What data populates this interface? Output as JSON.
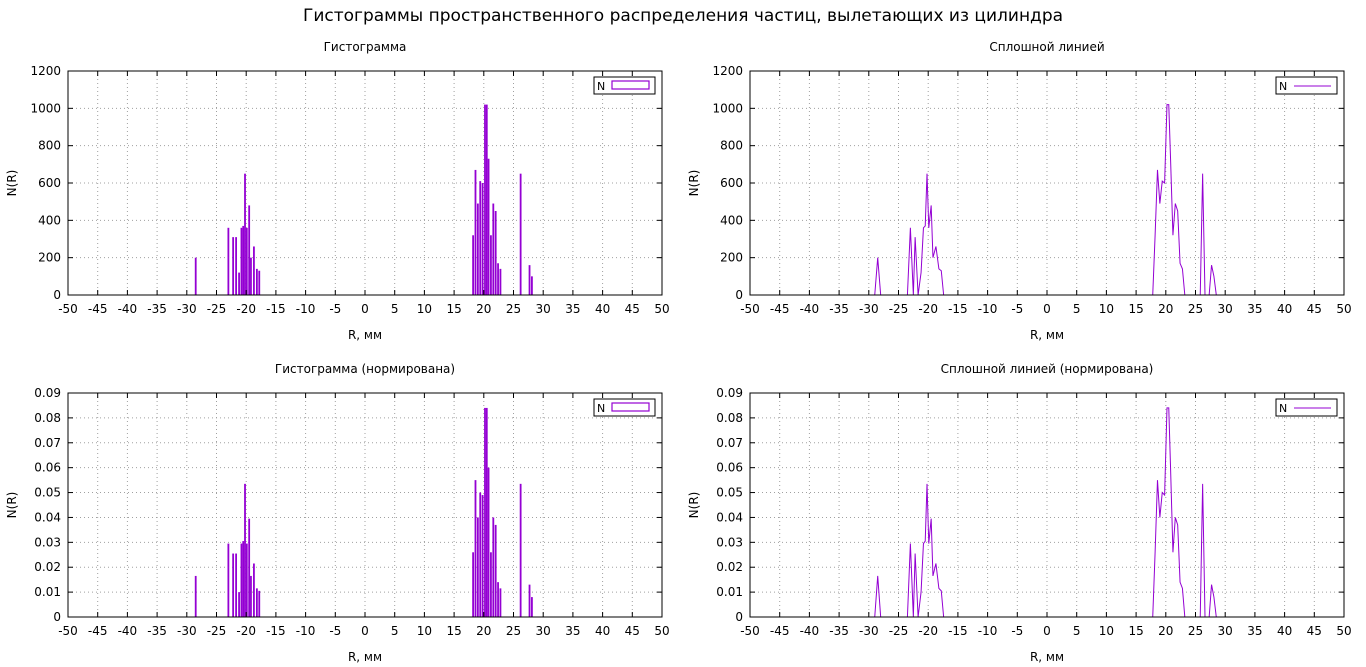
{
  "page_title": "Гистограммы пространственного распределения частиц, вылетающих из цилиндра",
  "colors": {
    "series": "#9400d3",
    "grid": "#a0a0a0",
    "axis": "#000000",
    "background": "#ffffff"
  },
  "chart_data": [
    {
      "type": "bar",
      "title": "Гистограмма",
      "xlabel": "R, мм",
      "ylabel": "N(R)",
      "xlim": [
        -50,
        50
      ],
      "ylim": [
        0,
        1200
      ],
      "xticks": [
        -50,
        -45,
        -40,
        -35,
        -30,
        -25,
        -20,
        -15,
        -10,
        -5,
        0,
        5,
        10,
        15,
        20,
        25,
        30,
        35,
        40,
        45,
        50
      ],
      "yticks": [
        0,
        200,
        400,
        600,
        800,
        1000,
        1200
      ],
      "grid": true,
      "legend": {
        "entries": [
          "N"
        ],
        "position": "top-right"
      },
      "series": [
        {
          "name": "N",
          "x": [
            -28.5,
            -23,
            -22.2,
            -21.7,
            -21.2,
            -20.8,
            -20.5,
            -20.2,
            -19.9,
            -19.5,
            -19.2,
            -18.7,
            -18.2,
            -17.8,
            18.2,
            18.6,
            19,
            19.4,
            19.8,
            20.2,
            20.5,
            20.8,
            21.2,
            21.6,
            22,
            22.4,
            22.8,
            26.2,
            27.7,
            28.1
          ],
          "values": [
            200,
            360,
            310,
            310,
            120,
            360,
            370,
            650,
            360,
            480,
            200,
            260,
            140,
            130,
            320,
            670,
            490,
            610,
            600,
            1020,
            1020,
            730,
            320,
            490,
            450,
            170,
            140,
            650,
            160,
            100
          ]
        }
      ]
    },
    {
      "type": "line",
      "title": "Сплошной линией",
      "xlabel": "R, мм",
      "ylabel": "N(R)",
      "xlim": [
        -50,
        50
      ],
      "ylim": [
        0,
        1200
      ],
      "xticks": [
        -50,
        -45,
        -40,
        -35,
        -30,
        -25,
        -20,
        -15,
        -10,
        -5,
        0,
        5,
        10,
        15,
        20,
        25,
        30,
        35,
        40,
        45,
        50
      ],
      "yticks": [
        0,
        200,
        400,
        600,
        800,
        1000,
        1200
      ],
      "grid": true,
      "legend": {
        "entries": [
          "N"
        ],
        "position": "top-right"
      },
      "series": [
        {
          "name": "N",
          "x": [
            -50,
            -29,
            -28.5,
            -28,
            -23.5,
            -23,
            -22.5,
            -22.2,
            -21.7,
            -21.2,
            -20.8,
            -20.5,
            -20.2,
            -19.9,
            -19.5,
            -19.2,
            -18.7,
            -18.2,
            -17.8,
            -17.4,
            17.8,
            18.2,
            18.6,
            19,
            19.4,
            19.8,
            20.2,
            20.5,
            20.8,
            21.2,
            21.6,
            22,
            22.4,
            22.8,
            23.2,
            25.8,
            26.2,
            26.6,
            27.3,
            27.7,
            28.1,
            28.5,
            50
          ],
          "values": [
            0,
            0,
            200,
            0,
            0,
            360,
            0,
            310,
            0,
            120,
            360,
            370,
            650,
            360,
            480,
            200,
            260,
            140,
            130,
            0,
            0,
            320,
            670,
            490,
            610,
            600,
            1020,
            1020,
            730,
            320,
            490,
            450,
            170,
            140,
            0,
            0,
            650,
            0,
            0,
            160,
            100,
            0,
            0
          ]
        }
      ]
    },
    {
      "type": "bar",
      "title": "Гистограмма (нормирована)",
      "xlabel": "R, мм",
      "ylabel": "N(R)",
      "xlim": [
        -50,
        50
      ],
      "ylim": [
        0,
        0.09
      ],
      "xticks": [
        -50,
        -45,
        -40,
        -35,
        -30,
        -25,
        -20,
        -15,
        -10,
        -5,
        0,
        5,
        10,
        15,
        20,
        25,
        30,
        35,
        40,
        45,
        50
      ],
      "yticks": [
        0,
        0.01,
        0.02,
        0.03,
        0.04,
        0.05,
        0.06,
        0.07,
        0.08,
        0.09
      ],
      "grid": true,
      "legend": {
        "entries": [
          "N"
        ],
        "position": "top-right"
      },
      "series": [
        {
          "name": "N",
          "x": [
            -28.5,
            -23,
            -22.2,
            -21.7,
            -21.2,
            -20.8,
            -20.5,
            -20.2,
            -19.9,
            -19.5,
            -19.2,
            -18.7,
            -18.2,
            -17.8,
            18.2,
            18.6,
            19,
            19.4,
            19.8,
            20.2,
            20.5,
            20.8,
            21.2,
            21.6,
            22,
            22.4,
            22.8,
            26.2,
            27.7,
            28.1
          ],
          "values": [
            0.0165,
            0.0295,
            0.0255,
            0.0255,
            0.01,
            0.0295,
            0.0305,
            0.0535,
            0.0295,
            0.0395,
            0.0165,
            0.0215,
            0.0115,
            0.0105,
            0.026,
            0.055,
            0.04,
            0.05,
            0.049,
            0.084,
            0.084,
            0.06,
            0.026,
            0.04,
            0.037,
            0.014,
            0.0115,
            0.0535,
            0.013,
            0.008
          ]
        }
      ]
    },
    {
      "type": "line",
      "title": "Сплошной линией (нормирована)",
      "xlabel": "R, мм",
      "ylabel": "N(R)",
      "xlim": [
        -50,
        50
      ],
      "ylim": [
        0,
        0.09
      ],
      "xticks": [
        -50,
        -45,
        -40,
        -35,
        -30,
        -25,
        -20,
        -15,
        -10,
        -5,
        0,
        5,
        10,
        15,
        20,
        25,
        30,
        35,
        40,
        45,
        50
      ],
      "yticks": [
        0,
        0.01,
        0.02,
        0.03,
        0.04,
        0.05,
        0.06,
        0.07,
        0.08,
        0.09
      ],
      "grid": true,
      "legend": {
        "entries": [
          "N"
        ],
        "position": "top-right"
      },
      "series": [
        {
          "name": "N",
          "x": [
            -50,
            -29,
            -28.5,
            -28,
            -23.5,
            -23,
            -22.5,
            -22.2,
            -21.7,
            -21.2,
            -20.8,
            -20.5,
            -20.2,
            -19.9,
            -19.5,
            -19.2,
            -18.7,
            -18.2,
            -17.8,
            -17.4,
            17.8,
            18.2,
            18.6,
            19,
            19.4,
            19.8,
            20.2,
            20.5,
            20.8,
            21.2,
            21.6,
            22,
            22.4,
            22.8,
            23.2,
            25.8,
            26.2,
            26.6,
            27.3,
            27.7,
            28.1,
            28.5,
            50
          ],
          "values": [
            0,
            0,
            0.0165,
            0,
            0,
            0.0295,
            0,
            0.0255,
            0,
            0.01,
            0.0295,
            0.0305,
            0.0535,
            0.0295,
            0.0395,
            0.0165,
            0.0215,
            0.0115,
            0.0105,
            0,
            0,
            0.026,
            0.055,
            0.04,
            0.05,
            0.049,
            0.084,
            0.084,
            0.06,
            0.026,
            0.04,
            0.037,
            0.014,
            0.0115,
            0,
            0,
            0.0535,
            0,
            0,
            0.013,
            0.008,
            0,
            0
          ]
        }
      ]
    }
  ]
}
